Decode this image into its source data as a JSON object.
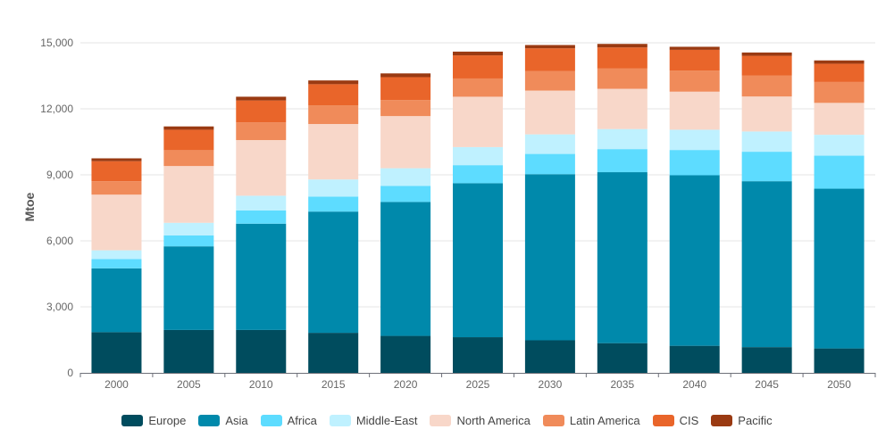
{
  "chart_data": {
    "type": "bar",
    "stacked": true,
    "title": "",
    "xlabel": "",
    "ylabel": "Mtoe",
    "ylim": [
      0,
      15000
    ],
    "yticks": [
      "0",
      "3,000",
      "6,000",
      "9,000",
      "12,000",
      "15,000"
    ],
    "grid": true,
    "legend_position": "bottom",
    "categories": [
      "2000",
      "2005",
      "2010",
      "2015",
      "2020",
      "2025",
      "2030",
      "2035",
      "2040",
      "2045",
      "2050"
    ],
    "series": [
      {
        "name": "Europe",
        "color": "#004c5e",
        "values": [
          1850,
          1950,
          1950,
          1820,
          1680,
          1620,
          1480,
          1350,
          1230,
          1170,
          1110
        ]
      },
      {
        "name": "Asia",
        "color": "#0089ab",
        "values": [
          2900,
          3800,
          4830,
          5510,
          6090,
          7000,
          7550,
          7770,
          7750,
          7540,
          7260
        ]
      },
      {
        "name": "Africa",
        "color": "#5ddcff",
        "values": [
          420,
          500,
          600,
          680,
          730,
          820,
          920,
          1050,
          1150,
          1340,
          1500
        ]
      },
      {
        "name": "Middle-East",
        "color": "#bff1ff",
        "values": [
          400,
          570,
          670,
          780,
          800,
          820,
          890,
          910,
          920,
          920,
          950
        ]
      },
      {
        "name": "North America",
        "color": "#f8d7c9",
        "values": [
          2530,
          2580,
          2530,
          2520,
          2370,
          2290,
          1990,
          1830,
          1730,
          1590,
          1450
        ]
      },
      {
        "name": "Latin America",
        "color": "#f08b5a",
        "values": [
          610,
          720,
          800,
          850,
          730,
          830,
          880,
          920,
          960,
          960,
          950
        ]
      },
      {
        "name": "CIS",
        "color": "#e9652a",
        "values": [
          910,
          930,
          1000,
          960,
          1040,
          1050,
          1040,
          960,
          940,
          890,
          830
        ]
      },
      {
        "name": "Pacific",
        "color": "#9a3a12",
        "values": [
          130,
          150,
          170,
          170,
          170,
          170,
          150,
          160,
          140,
          150,
          150
        ]
      }
    ]
  }
}
